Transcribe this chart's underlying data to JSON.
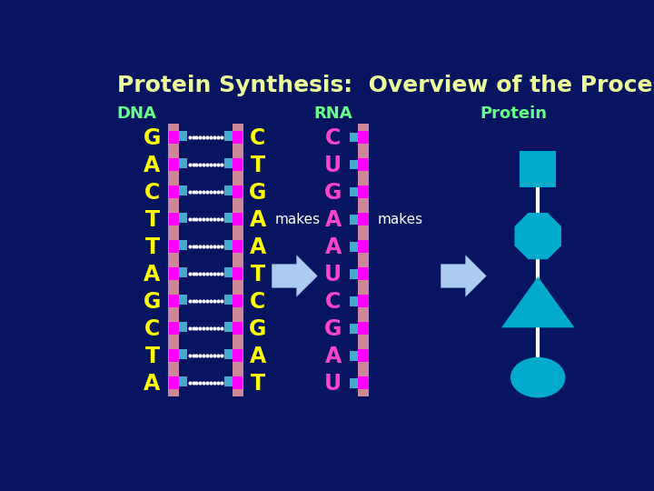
{
  "title": "Protein Synthesis:  Overview of the Process",
  "bg_color": "#071560",
  "title_color": "#eeff99",
  "dna_label": "DNA",
  "rna_label": "RNA",
  "protein_label": "Protein",
  "label_color": "#66ff88",
  "dna_left_bases": [
    "G",
    "A",
    "C",
    "T",
    "T",
    "A",
    "G",
    "C",
    "T",
    "A"
  ],
  "dna_right_bases": [
    "C",
    "T",
    "G",
    "A",
    "A",
    "T",
    "C",
    "G",
    "A",
    "T"
  ],
  "rna_bases": [
    "C",
    "U",
    "G",
    "A",
    "A",
    "U",
    "C",
    "G",
    "A",
    "U"
  ],
  "left_base_color": "#ffff00",
  "right_base_color": "#ffff00",
  "rna_base_color": "#ff44cc",
  "backbone_salmon": "#cc8899",
  "pink_node_color": "#ff00ff",
  "teal_node_color": "#44aacc",
  "shape_color": "#00aacc",
  "makes_color": "#ffffff",
  "arrow_color": "#aaccee",
  "dot_color": "#ffffff",
  "line_color": "#ffffff"
}
